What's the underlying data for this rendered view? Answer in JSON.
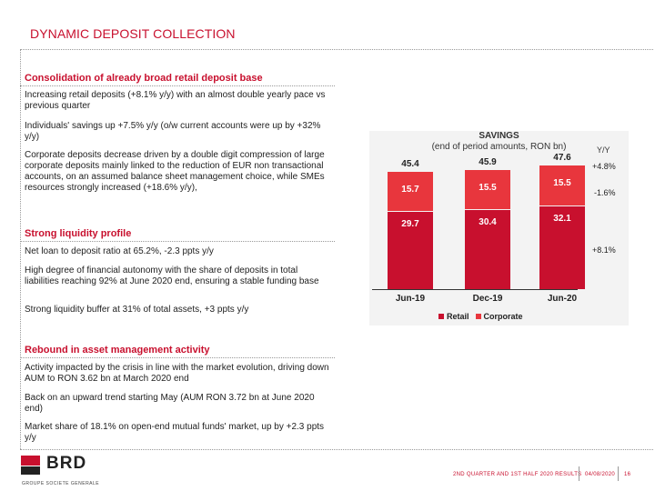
{
  "header": {
    "title": "DYNAMIC DEPOSIT COLLECTION"
  },
  "sections": [
    {
      "title": "Consolidation of already broad retail deposit base",
      "bullets": [
        "Increasing retail deposits (+8.1% y/y) with an almost double yearly pace vs previous quarter",
        "Individuals' savings up +7.5% y/y (o/w current accounts were up by +32% y/y)",
        "Corporate deposits decrease driven by a double digit compression of large corporate deposits mainly linked to the reduction of EUR non transactional accounts, on an assumed balance sheet management choice, while SMEs resources strongly increased (+18.6% y/y),"
      ]
    },
    {
      "title": "Strong liquidity profile",
      "bullets": [
        "Net loan to deposit ratio at 65.2%, -2.3 ppts y/y",
        "High degree of financial autonomy with the share of deposits in total liabilities reaching 92% at June 2020 end, ensuring a stable funding base",
        "Strong liquidity buffer at 31% of total assets, +3 ppts y/y"
      ]
    },
    {
      "title": "Rebound in asset management activity",
      "bullets": [
        "Activity impacted by the crisis in line with the market evolution, driving down AUM to RON 3.62 bn at March 2020 end",
        "Back on an upward trend starting May (AUM RON 3.72 bn at June 2020 end)",
        "Market share of 18.1% on open-end mutual funds' market, up by +2.3 ppts y/y"
      ]
    }
  ],
  "chart_data": {
    "type": "bar",
    "stacked": true,
    "title": "SAVINGS",
    "subtitle": "(end of period amounts, RON bn)",
    "categories": [
      "Jun-19",
      "Dec-19",
      "Jun-20"
    ],
    "series": [
      {
        "name": "Retail",
        "values": [
          29.7,
          30.4,
          32.1
        ],
        "color": "#c8102e",
        "yy": "+8.1%"
      },
      {
        "name": "Corporate",
        "values": [
          15.7,
          15.5,
          15.5
        ],
        "color": "#e8363d",
        "yy": "-1.6%"
      }
    ],
    "totals": [
      45.4,
      45.9,
      47.6
    ],
    "total_yy": "+4.8%",
    "yy_header": "Y/Y",
    "legend_position": "bottom",
    "grid": false
  },
  "footer": {
    "period": "2ND QUARTER AND 1ST HALF 2020 RESULTS",
    "date": "04/08/2020",
    "page": "16",
    "logo_text": "BRD",
    "logo_sub": "GROUPE SOCIETE GENERALE"
  },
  "colors": {
    "accent": "#c8102e",
    "corporate": "#e8363d",
    "chart_bg": "#f3f3f3"
  }
}
